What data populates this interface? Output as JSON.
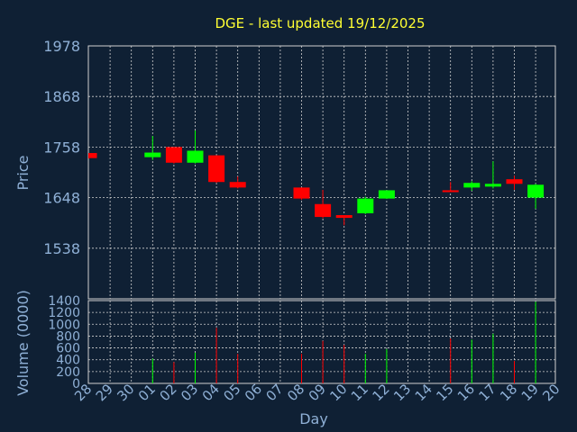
{
  "chart_data": {
    "type": "candlestick",
    "title": "DGE - last updated 19/12/2025",
    "xlabel": "Day",
    "price_panel": {
      "ylabel": "Price",
      "ylim": [
        1428,
        1978
      ],
      "yticks": [
        "1978",
        "1868",
        "1758",
        "1648",
        "1538"
      ],
      "grid": true
    },
    "volume_panel": {
      "ylabel": "Volume (0000)",
      "ylim": [
        0,
        1400
      ],
      "yticks": [
        "1400",
        "1200",
        "1000",
        "800",
        "600",
        "400",
        "200",
        "0"
      ],
      "grid": true
    },
    "days": [
      "28",
      "29",
      "30",
      "01",
      "02",
      "03",
      "04",
      "05",
      "06",
      "07",
      "08",
      "09",
      "10",
      "11",
      "12",
      "13",
      "14",
      "15",
      "16",
      "17",
      "18",
      "19",
      "20"
    ],
    "colors": {
      "up": "#00ff00",
      "down": "#ff0000",
      "grid": "#d0d0d0",
      "background": "#0f2034",
      "text": "#8fb0d6",
      "title": "#ffff33"
    },
    "candles": [
      {
        "day": "28",
        "open": 1745,
        "high": 1745,
        "low": 1733,
        "close": 1734,
        "volume": 0
      },
      {
        "day": "01",
        "open": 1736,
        "high": 1782,
        "low": 1730,
        "close": 1746,
        "volume": 420
      },
      {
        "day": "02",
        "open": 1758,
        "high": 1758,
        "low": 1722,
        "close": 1724,
        "volume": 360
      },
      {
        "day": "03",
        "open": 1724,
        "high": 1794,
        "low": 1722,
        "close": 1750,
        "volume": 520
      },
      {
        "day": "04",
        "open": 1740,
        "high": 1740,
        "low": 1680,
        "close": 1682,
        "volume": 940
      },
      {
        "day": "05",
        "open": 1682,
        "high": 1694,
        "low": 1668,
        "close": 1670,
        "volume": 500
      },
      {
        "day": "08",
        "open": 1670,
        "high": 1670,
        "low": 1643,
        "close": 1646,
        "volume": 500
      },
      {
        "day": "09",
        "open": 1634,
        "high": 1665,
        "low": 1603,
        "close": 1606,
        "volume": 720
      },
      {
        "day": "10",
        "open": 1610,
        "high": 1610,
        "low": 1588,
        "close": 1604,
        "volume": 650
      },
      {
        "day": "11",
        "open": 1614,
        "high": 1650,
        "low": 1612,
        "close": 1646,
        "volume": 500
      },
      {
        "day": "12",
        "open": 1646,
        "high": 1664,
        "low": 1645,
        "close": 1664,
        "volume": 580
      },
      {
        "day": "15",
        "open": 1664,
        "high": 1682,
        "low": 1660,
        "close": 1660,
        "volume": 760
      },
      {
        "day": "16",
        "open": 1670,
        "high": 1684,
        "low": 1663,
        "close": 1680,
        "volume": 740
      },
      {
        "day": "17",
        "open": 1672,
        "high": 1727,
        "low": 1668,
        "close": 1678,
        "volume": 840
      },
      {
        "day": "18",
        "open": 1688,
        "high": 1696,
        "low": 1665,
        "close": 1678,
        "volume": 380
      },
      {
        "day": "19",
        "open": 1648,
        "high": 1678,
        "low": 1624,
        "close": 1676,
        "volume": 1380
      }
    ]
  }
}
